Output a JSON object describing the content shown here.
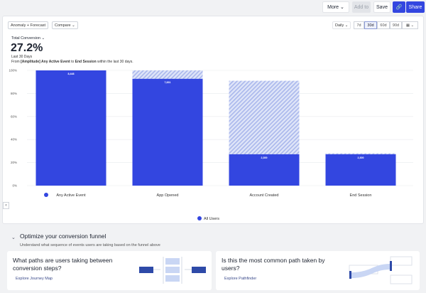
{
  "toolbar": {
    "more": "More",
    "add_to": "Add to",
    "save": "Save",
    "share": "Share"
  },
  "controls": {
    "anomaly": "Anomaly + Forecast",
    "compare": "Compare",
    "interval": "Daily",
    "ranges": [
      "7d",
      "30d",
      "60d",
      "90d"
    ],
    "selected_range": "30d"
  },
  "summary": {
    "metric": "Total Conversion",
    "value": "27.2%",
    "period": "Last 30 Days",
    "desc_prefix": "From ",
    "from_event": "[Amplitude] Any Active Event",
    "desc_mid": " to ",
    "to_event": "End Session",
    "desc_suffix": " within the last 30 days."
  },
  "chart_data": {
    "type": "bar",
    "categories": [
      "Any Active Event",
      "App Opened",
      "Account Created",
      "End Session"
    ],
    "series": [
      {
        "name": "All Users",
        "values": [
          100,
          92.7,
          27.2,
          27.2
        ],
        "labels": [
          "8,448",
          "7,831",
          "2,300",
          "2,300"
        ]
      }
    ],
    "forecast_hatched": [
      100,
      100,
      91,
      28
    ],
    "yticks": [
      "0%",
      "20%",
      "40%",
      "60%",
      "80%",
      "100%"
    ],
    "ylim": [
      0,
      100
    ],
    "legend": "bottom",
    "colors": {
      "bar": "#3346e0",
      "hatch": "#b8c3ee"
    }
  },
  "optimize": {
    "title": "Optimize your conversion funnel",
    "subtitle": "Understand what sequence of events users are taking based on the funnel above",
    "cards": [
      {
        "question": "What paths are users taking between conversion steps?",
        "link": "Explore Journey Map"
      },
      {
        "question": "Is this the most common path taken by users?",
        "link": "Explore Pathfinder"
      }
    ]
  }
}
